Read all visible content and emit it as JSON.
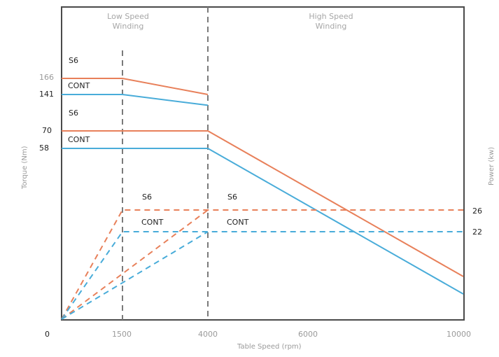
{
  "chart_data": {
    "type": "line",
    "xlabel": "Table Speed (rpm)",
    "ylabel_left": "Torque (Nm)",
    "ylabel_right": "Power (kw)",
    "xlim": [
      0,
      10000
    ],
    "x_ticks": [
      "0",
      "1500",
      "4000",
      "6000",
      "10000"
    ],
    "y_ticks_left": [
      "166",
      "141",
      "70",
      "58"
    ],
    "y_ticks_right": [
      "26",
      "22"
    ],
    "regions": [
      {
        "title_line1": "Low Speed",
        "title_line2": "Winding"
      },
      {
        "title_line1": "High Speed",
        "title_line2": "Winding"
      }
    ],
    "dividers_x": [
      1500,
      4000
    ],
    "series": [
      {
        "name": "S6",
        "kind": "torque",
        "color": "#e8805a",
        "dashed": false,
        "x": [
          0,
          1500,
          4000
        ],
        "y": [
          166,
          166,
          141
        ]
      },
      {
        "name": "CONT",
        "kind": "torque",
        "color": "#49acd9",
        "dashed": false,
        "x": [
          0,
          1500,
          4000
        ],
        "y": [
          141,
          141,
          120
        ]
      },
      {
        "name": "S6",
        "kind": "torque",
        "color": "#e8805a",
        "dashed": false,
        "x": [
          0,
          4000,
          10000
        ],
        "y": [
          70,
          70,
          0
        ]
      },
      {
        "name": "CONT",
        "kind": "torque",
        "color": "#49acd9",
        "dashed": false,
        "x": [
          0,
          4000,
          10000
        ],
        "y": [
          58,
          58,
          -12
        ]
      },
      {
        "name": "S6",
        "kind": "power",
        "color": "#e8805a",
        "dashed": true,
        "x": [
          0,
          1500,
          10000
        ],
        "y": [
          0,
          26,
          26
        ]
      },
      {
        "name": "CONT",
        "kind": "power",
        "color": "#49acd9",
        "dashed": true,
        "x": [
          0,
          1500,
          10000
        ],
        "y": [
          0,
          22,
          22
        ]
      },
      {
        "name": "S6",
        "kind": "power",
        "color": "#e8805a",
        "dashed": true,
        "x": [
          0,
          4000
        ],
        "y": [
          0,
          26
        ]
      },
      {
        "name": "CONT",
        "kind": "power",
        "color": "#49acd9",
        "dashed": true,
        "x": [
          0,
          4000
        ],
        "y": [
          0,
          22
        ]
      }
    ],
    "series_labels": {
      "s6_low": "S6",
      "cont_low": "CONT",
      "s6_high": "S6",
      "cont_high": "CONT",
      "s6_power_low": "S6",
      "cont_power_low": "CONT",
      "s6_power_high": "S6",
      "cont_power_high": "CONT"
    },
    "grid": false,
    "legend": "none"
  }
}
